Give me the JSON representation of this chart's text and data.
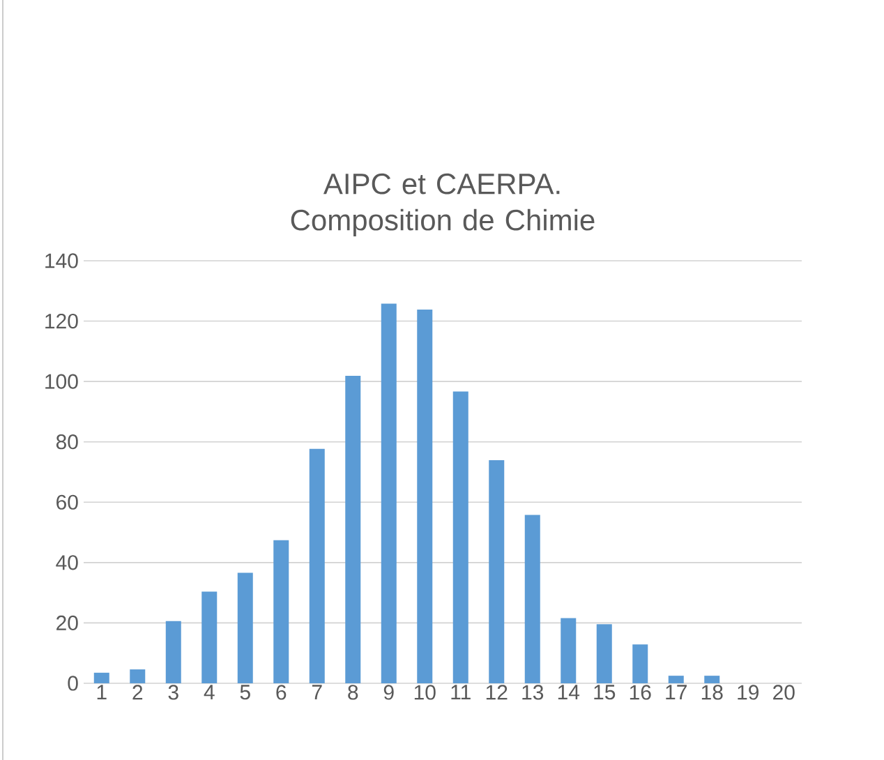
{
  "chart_data": {
    "type": "bar",
    "title": "AIPC et CAERPA. Composition de Chimie",
    "categories": [
      "1",
      "2",
      "3",
      "4",
      "5",
      "6",
      "7",
      "8",
      "9",
      "10",
      "11",
      "12",
      "13",
      "14",
      "15",
      "16",
      "17",
      "18",
      "19",
      "20"
    ],
    "values": [
      3.5,
      4.6,
      20.6,
      30.4,
      36.6,
      47.4,
      77.7,
      101.9,
      125.8,
      123.8,
      96.7,
      73.9,
      55.8,
      21.6,
      19.6,
      12.9,
      2.5,
      2.5,
      0,
      0
    ],
    "color": "#5b9bd5",
    "ylim": [
      0,
      140
    ],
    "yticks": [
      0,
      20,
      40,
      60,
      80,
      100,
      120,
      140
    ],
    "grid": "y"
  }
}
